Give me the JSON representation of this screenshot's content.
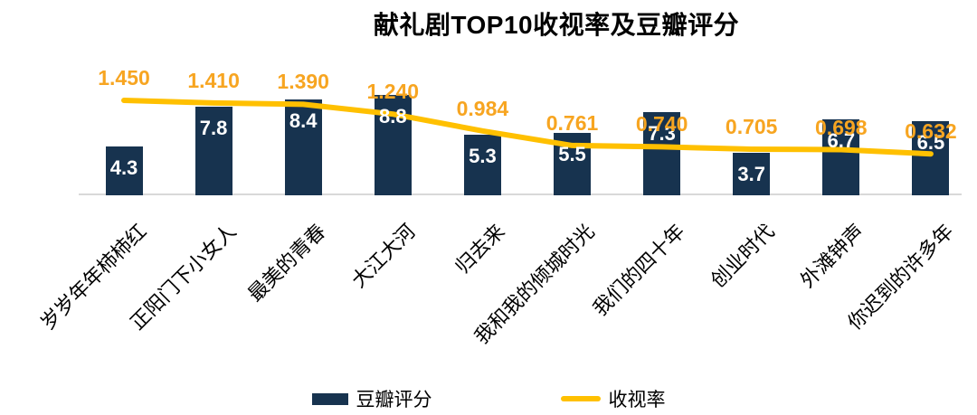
{
  "title": "献礼剧TOP10收视率及豆瓣评分",
  "legend": {
    "bar_label": "豆瓣评分",
    "line_label": "收视率"
  },
  "colors": {
    "bar": "#17334F",
    "line": "#FFC000",
    "line_label_text": "#F7A521",
    "bar_label_text": "#FFFFFF",
    "axis": "#D9D9D9",
    "title_text": "#000000",
    "category_text": "#000000"
  },
  "chart_data": {
    "type": "bar",
    "combo": "bar+line",
    "title": "献礼剧TOP10收视率及豆瓣评分",
    "categories": [
      "岁岁年年柿柿红",
      "正阳门下小女人",
      "最美的青春",
      "大江大河",
      "归去来",
      "我和我的倾城时光",
      "我们的四十年",
      "创业时代",
      "外滩钟声",
      "你迟到的许多年"
    ],
    "series": [
      {
        "name": "豆瓣评分",
        "type": "bar",
        "values": [
          4.3,
          7.8,
          8.4,
          8.8,
          5.3,
          5.5,
          7.3,
          3.7,
          6.7,
          6.5
        ],
        "labels": [
          "4.3",
          "7.8",
          "8.4",
          "8.8",
          "5.3",
          "5.5",
          "7.3",
          "3.7",
          "6.7",
          "6.5"
        ]
      },
      {
        "name": "收视率",
        "type": "line",
        "values": [
          1.45,
          1.41,
          1.39,
          1.24,
          0.984,
          0.761,
          0.74,
          0.705,
          0.698,
          0.632
        ],
        "labels": [
          "1.450",
          "1.410",
          "1.390",
          "1.240",
          "0.984",
          "0.761",
          "0.740",
          "0.705",
          "0.698",
          "0.632"
        ]
      }
    ],
    "xlabel": "",
    "ylabel": "",
    "grid": false,
    "axes_hidden": true,
    "legend_position": "bottom",
    "category_label_rotation_deg": 45
  }
}
